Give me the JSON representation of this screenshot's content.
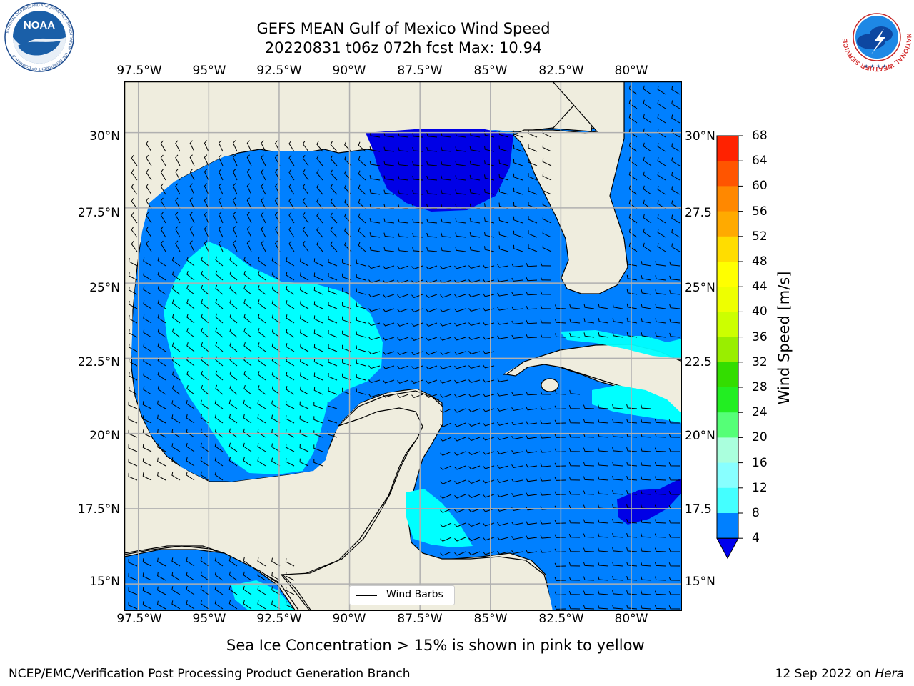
{
  "title": {
    "line1": "GEFS MEAN Gulf of Mexico Wind Speed",
    "line2": "20220831 t06z 072h fcst   Max: 10.94"
  },
  "logos": {
    "noaa": {
      "text": "NOAA",
      "ring_text": "NATIONAL OCEANIC AND ATMOSPHERIC ADMINISTRATION · U.S. DEPARTMENT OF COMMERCE"
    },
    "nws": {
      "ring_text": "NATIONAL WEATHER SERVICE"
    }
  },
  "map": {
    "lon_ticks": [
      "97.5°W",
      "95°W",
      "92.5°W",
      "90°W",
      "87.5°W",
      "85°W",
      "82.5°W",
      "80°W"
    ],
    "lat_ticks_left": [
      "30°N",
      "27.5°N",
      "25°N",
      "22.5°N",
      "20°N",
      "17.5°N",
      "15°N"
    ],
    "lat_ticks_right": [
      "30°N",
      "27.5",
      "25°N",
      "22.5",
      "20°N",
      "17.5",
      "15°N"
    ],
    "extent": {
      "lon_min": -98,
      "lon_max": -78.2,
      "lat_min": 14.1,
      "lat_max": 31.7
    },
    "colors": {
      "land": "#efedde",
      "band_4_8": "#0080ff",
      "band_0_4": "#0000e6",
      "band_8_12": "#00ffff",
      "grid": "#b0b0b0"
    },
    "legend_label": "Wind Barbs"
  },
  "colorbar": {
    "label": "Wind Speed [m/s]",
    "levels": [
      4,
      8,
      12,
      16,
      20,
      24,
      28,
      32,
      36,
      40,
      44,
      48,
      52,
      56,
      60,
      64,
      68
    ],
    "colors": [
      "#0080ff",
      "#00ffff",
      "#44ffff",
      "#88ffff",
      "#aaffdd",
      "#55ff77",
      "#22ee22",
      "#33dd00",
      "#99ee00",
      "#ccff00",
      "#eeff00",
      "#ffff00",
      "#ffdd00",
      "#ffaa00",
      "#ff8800",
      "#ff5500",
      "#ff2200",
      "#ff0000"
    ],
    "under_color": "#0000ee"
  },
  "notes": {
    "sea_ice": "Sea Ice Concentration > 15% is shown in pink to yellow"
  },
  "footer": {
    "left": "NCEP/EMC/Verification Post Processing Product Generation Branch",
    "right_prefix": "12 Sep 2022 on ",
    "right_machine": "Hera"
  }
}
